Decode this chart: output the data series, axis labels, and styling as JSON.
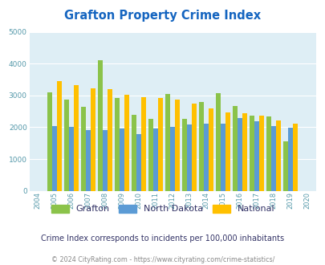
{
  "title": "Grafton Property Crime Index",
  "years": [
    2004,
    2005,
    2006,
    2007,
    2008,
    2009,
    2010,
    2011,
    2012,
    2013,
    2014,
    2015,
    2016,
    2017,
    2018,
    2019,
    2020
  ],
  "grafton": [
    null,
    3100,
    2880,
    2630,
    4100,
    2920,
    2380,
    2260,
    3040,
    2260,
    2800,
    3060,
    2660,
    2360,
    2340,
    1560,
    null
  ],
  "north_dakota": [
    null,
    2040,
    2000,
    1900,
    1920,
    1960,
    1780,
    1960,
    2000,
    2090,
    2120,
    2120,
    2290,
    2180,
    2040,
    1990,
    null
  ],
  "national": [
    null,
    3440,
    3330,
    3230,
    3200,
    3020,
    2940,
    2920,
    2870,
    2730,
    2600,
    2470,
    2430,
    2370,
    2200,
    2100,
    null
  ],
  "grafton_color": "#8bc34a",
  "nd_color": "#5b9bd5",
  "national_color": "#ffc000",
  "bg_color": "#deeef5",
  "title_color": "#1565c0",
  "ylim": [
    0,
    5000
  ],
  "yticks": [
    0,
    1000,
    2000,
    3000,
    4000,
    5000
  ],
  "subtitle": "Crime Index corresponds to incidents per 100,000 inhabitants",
  "footer": "© 2024 CityRating.com - https://www.cityrating.com/crime-statistics/",
  "subtitle_color": "#333366",
  "footer_color": "#888888",
  "legend_label_color": "#333366"
}
